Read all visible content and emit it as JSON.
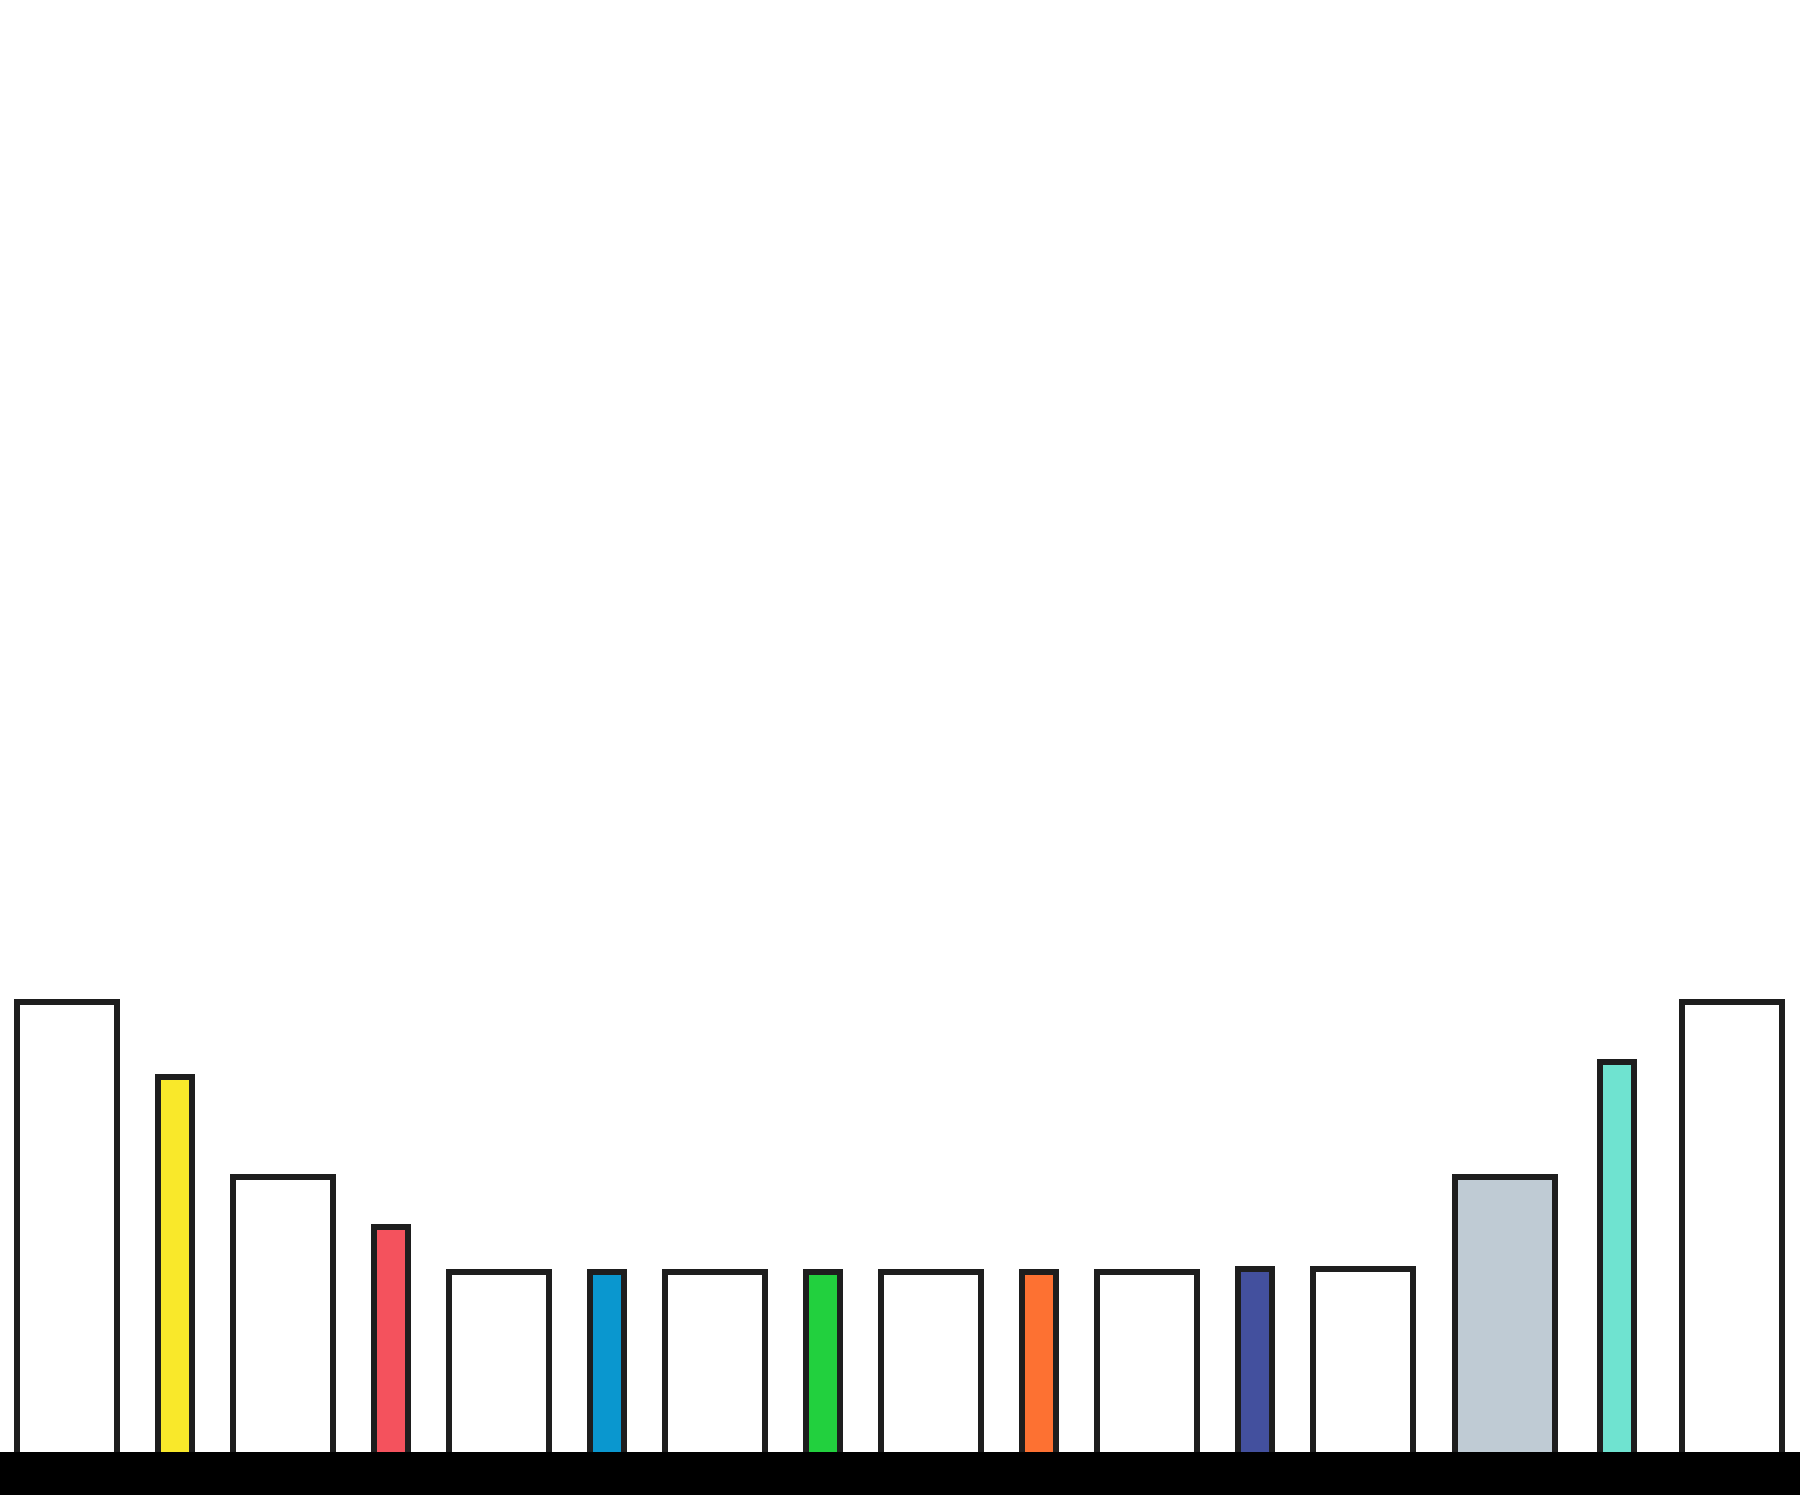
{
  "colors": {
    "background": "#ffffff",
    "outline": "#1e1e1e",
    "floor": "#000000"
  },
  "scene": {
    "columns": [
      {
        "kind": "wide",
        "fill": "#ffffff",
        "level": 0.9
      },
      {
        "kind": "narrow",
        "fill": "#f9e82a",
        "level": 0.75
      },
      {
        "kind": "wide",
        "fill": "#ffffff",
        "level": 0.55
      },
      {
        "kind": "narrow",
        "fill": "#f4525d",
        "level": 0.45
      },
      {
        "kind": "wide",
        "fill": "#ffffff",
        "level": 0.36
      },
      {
        "kind": "narrow",
        "fill": "#0a97cf",
        "level": 0.36
      },
      {
        "kind": "wide",
        "fill": "#ffffff",
        "level": 0.36
      },
      {
        "kind": "narrow",
        "fill": "#22d03e",
        "level": 0.36
      },
      {
        "kind": "wide",
        "fill": "#ffffff",
        "level": 0.36
      },
      {
        "kind": "narrow",
        "fill": "#fd7132",
        "level": 0.36
      },
      {
        "kind": "wide",
        "fill": "#ffffff",
        "level": 0.36
      },
      {
        "kind": "narrow",
        "fill": "#43509e",
        "level": 0.365
      },
      {
        "kind": "wide",
        "fill": "#ffffff",
        "level": 0.365
      },
      {
        "kind": "wide",
        "fill": "#bfcbd4",
        "level": 0.55
      },
      {
        "kind": "narrow",
        "fill": "#6fe3d0",
        "level": 0.78
      },
      {
        "kind": "wide",
        "fill": "#ffffff",
        "level": 0.9
      }
    ]
  }
}
